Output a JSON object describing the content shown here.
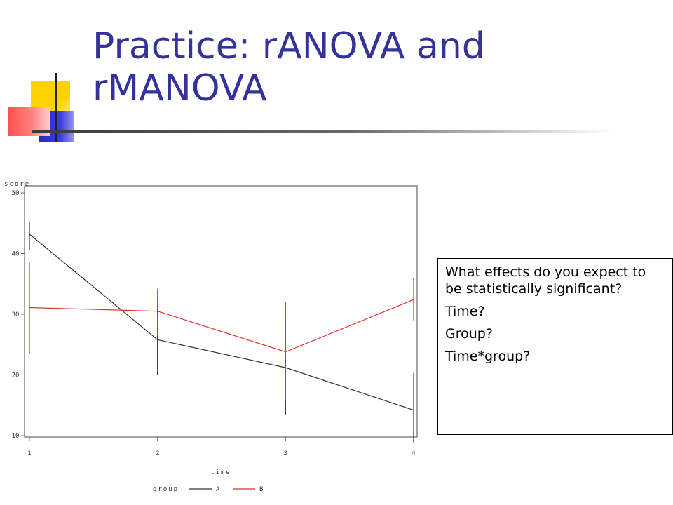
{
  "slide": {
    "title": "Practice: rANOVA and rMANOVA",
    "question": "What effects do you expect to be statistically significant?",
    "options": [
      "Time?",
      "Group?",
      "Time*group?"
    ]
  },
  "chart_data": {
    "type": "line",
    "ylabel": "score",
    "xlabel": "time",
    "legend_title": "group",
    "legend_position": "bottom",
    "x": [
      1,
      2,
      3,
      4
    ],
    "xlim": [
      1,
      4
    ],
    "ylim": [
      10,
      50
    ],
    "yticks": [
      10,
      20,
      30,
      40,
      50
    ],
    "series": [
      {
        "name": "A",
        "color": "#333333",
        "values": [
          43.2,
          25.8,
          21.2,
          14.2
        ],
        "lower": [
          40.5,
          20.0,
          13.5,
          8.8
        ],
        "upper": [
          45.3,
          31.5,
          28.8,
          20.3
        ]
      },
      {
        "name": "B",
        "color": "#e0302a",
        "values": [
          31.1,
          30.5,
          23.8,
          32.4
        ],
        "lower": [
          23.5,
          26.5,
          15.8,
          29.0
        ],
        "upper": [
          38.5,
          34.2,
          32.0,
          35.9
        ]
      }
    ]
  }
}
